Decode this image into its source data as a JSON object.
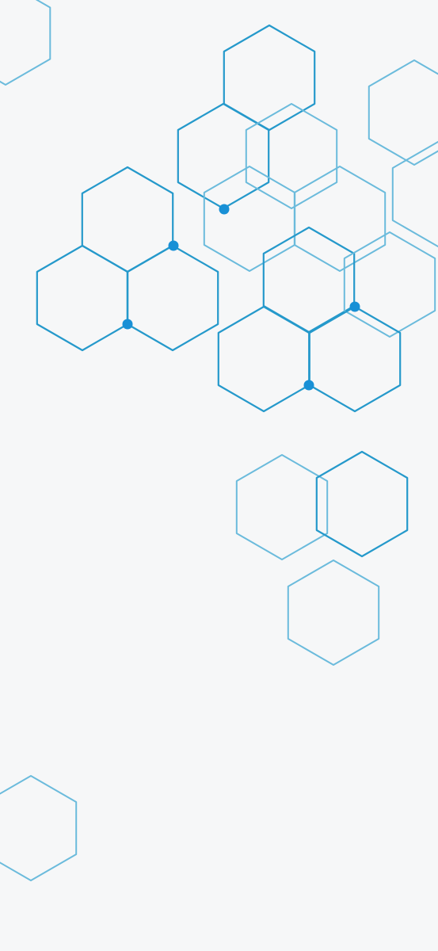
{
  "background": {
    "pattern": "hexagon-outline-pattern",
    "colors": {
      "background": "#f6f7f8",
      "dark_stroke": "#2599cb",
      "light_stroke": "#6bbbdc",
      "node_fill": "#1890d6"
    }
  }
}
